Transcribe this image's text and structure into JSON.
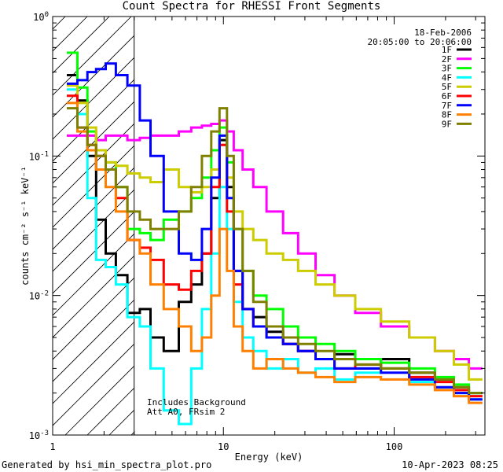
{
  "chart_data": {
    "type": "line",
    "title": "Count Spectra for RHESSI Front Segments",
    "xlabel": "Energy (keV)",
    "ylabel": "counts cm⁻² s⁻¹ keV⁻¹",
    "xscale": "log",
    "yscale": "log",
    "xlim": [
      1,
      340
    ],
    "ylim": [
      0.001,
      1
    ],
    "x_ticks": [
      {
        "value": 1,
        "label": "1"
      },
      {
        "value": 10,
        "label": "10"
      },
      {
        "value": 100,
        "label": "100"
      }
    ],
    "y_ticks": [
      {
        "value": 1,
        "label": "10",
        "exp": "0"
      },
      {
        "value": 0.1,
        "label": "10",
        "exp": "-1"
      },
      {
        "value": 0.01,
        "label": "10",
        "exp": "-2"
      },
      {
        "value": 0.001,
        "label": "10",
        "exp": "-3"
      }
    ],
    "legend_header": [
      "18-Feb-2006",
      "20:05:00 to 20:06:00"
    ],
    "legend_position": "top-right",
    "shaded_region": {
      "x_from": 1,
      "x_to": 3,
      "style": "diagonal hatching"
    },
    "annotations": [
      "Includes Background",
      "Att A0, FRsim 2"
    ],
    "energy_keV": [
      1.3,
      1.5,
      1.7,
      1.9,
      2.2,
      2.5,
      3,
      3.5,
      4,
      5,
      6,
      7,
      8,
      9,
      10,
      11,
      12,
      14,
      16,
      20,
      25,
      30,
      40,
      50,
      70,
      100,
      150,
      200,
      250,
      300
    ],
    "series": [
      {
        "name": "1F",
        "color": "#000000",
        "values": [
          0.38,
          0.25,
          0.1,
          0.035,
          0.02,
          0.014,
          0.0075,
          0.008,
          0.005,
          0.004,
          0.009,
          0.012,
          0.02,
          0.05,
          0.13,
          0.06,
          0.015,
          0.008,
          0.007,
          0.0055,
          0.0045,
          0.004,
          0.0035,
          0.0038,
          0.003,
          0.0035,
          0.0028,
          0.0025,
          0.0022,
          0.002
        ]
      },
      {
        "name": "2F",
        "color": "#ff00ff",
        "values": [
          0.14,
          0.14,
          0.14,
          0.13,
          0.14,
          0.14,
          0.13,
          0.135,
          0.14,
          0.14,
          0.15,
          0.16,
          0.165,
          0.17,
          0.18,
          0.15,
          0.11,
          0.08,
          0.06,
          0.04,
          0.028,
          0.02,
          0.014,
          0.01,
          0.0075,
          0.006,
          0.005,
          0.004,
          0.0035,
          0.003
        ]
      },
      {
        "name": "3F",
        "color": "#00ff00",
        "values": [
          0.55,
          0.31,
          0.15,
          0.11,
          0.09,
          0.06,
          0.03,
          0.028,
          0.025,
          0.035,
          0.04,
          0.05,
          0.07,
          0.11,
          0.16,
          0.09,
          0.03,
          0.015,
          0.01,
          0.008,
          0.006,
          0.005,
          0.0045,
          0.004,
          0.0035,
          0.0033,
          0.003,
          0.0026,
          0.0023,
          0.002
        ]
      },
      {
        "name": "4F",
        "color": "#00ffff",
        "values": [
          0.3,
          0.2,
          0.05,
          0.018,
          0.016,
          0.012,
          0.007,
          0.006,
          0.003,
          0.0015,
          0.0012,
          0.003,
          0.008,
          0.02,
          0.06,
          0.03,
          0.009,
          0.005,
          0.004,
          0.003,
          0.0035,
          0.0028,
          0.003,
          0.0025,
          0.0028,
          0.003,
          0.0024,
          0.0022,
          0.002,
          0.0018
        ]
      },
      {
        "name": "5F",
        "color": "#cccc00",
        "values": [
          0.32,
          0.24,
          0.16,
          0.11,
          0.09,
          0.085,
          0.075,
          0.07,
          0.065,
          0.08,
          0.06,
          0.055,
          0.06,
          0.08,
          0.12,
          0.07,
          0.04,
          0.03,
          0.025,
          0.02,
          0.018,
          0.015,
          0.012,
          0.01,
          0.008,
          0.0065,
          0.005,
          0.004,
          0.0032,
          0.0025
        ]
      },
      {
        "name": "6F",
        "color": "#ff0000",
        "values": [
          0.27,
          0.16,
          0.12,
          0.1,
          0.08,
          0.05,
          0.025,
          0.022,
          0.018,
          0.012,
          0.011,
          0.015,
          0.02,
          0.06,
          0.12,
          0.04,
          0.012,
          0.008,
          0.006,
          0.005,
          0.0045,
          0.004,
          0.0035,
          0.003,
          0.0032,
          0.003,
          0.0026,
          0.0024,
          0.0021,
          0.0019
        ]
      },
      {
        "name": "7F",
        "color": "#0000ff",
        "values": [
          0.33,
          0.35,
          0.4,
          0.42,
          0.46,
          0.38,
          0.32,
          0.18,
          0.1,
          0.04,
          0.02,
          0.018,
          0.03,
          0.07,
          0.14,
          0.05,
          0.015,
          0.008,
          0.006,
          0.005,
          0.0045,
          0.004,
          0.0035,
          0.003,
          0.003,
          0.0028,
          0.0025,
          0.0022,
          0.002,
          0.0018
        ]
      },
      {
        "name": "8F",
        "color": "#ff8000",
        "values": [
          0.24,
          0.15,
          0.11,
          0.08,
          0.06,
          0.04,
          0.025,
          0.02,
          0.012,
          0.008,
          0.006,
          0.004,
          0.005,
          0.01,
          0.03,
          0.015,
          0.006,
          0.004,
          0.003,
          0.0035,
          0.003,
          0.0028,
          0.0026,
          0.0024,
          0.0026,
          0.0025,
          0.0023,
          0.0021,
          0.0019,
          0.0017
        ]
      },
      {
        "name": "9F",
        "color": "#808000",
        "values": [
          0.22,
          0.16,
          0.12,
          0.1,
          0.08,
          0.06,
          0.04,
          0.035,
          0.03,
          0.03,
          0.04,
          0.06,
          0.1,
          0.15,
          0.22,
          0.1,
          0.03,
          0.015,
          0.009,
          0.006,
          0.005,
          0.0045,
          0.004,
          0.0035,
          0.0032,
          0.003,
          0.0028,
          0.0025,
          0.0022,
          0.002
        ]
      }
    ]
  },
  "footer": {
    "generated_by": "Generated by hsi_min_spectra_plot.pro",
    "timestamp": "10-Apr-2023 08:25"
  }
}
